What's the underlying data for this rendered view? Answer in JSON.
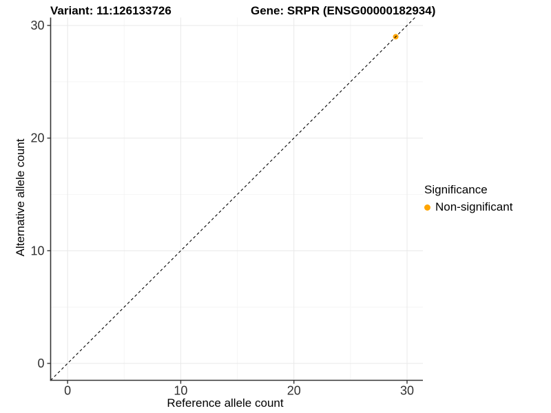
{
  "chart_data": {
    "type": "scatter",
    "title_left": "Variant: 11:126133726",
    "title_right": "Gene: SRPR (ENSG00000182934)",
    "xlabel": "Reference allele count",
    "ylabel": "Alternative allele count",
    "xlim": [
      -1.5,
      31.4
    ],
    "ylim": [
      -1.5,
      30.7
    ],
    "x_ticks": [
      0,
      10,
      20,
      30
    ],
    "y_ticks": [
      0,
      10,
      20,
      30
    ],
    "x_minor_ticks": [
      5,
      15,
      25
    ],
    "y_minor_ticks": [
      5,
      15,
      25
    ],
    "grid": "major+minor",
    "identity_line": {
      "style": "dashed",
      "color": "#000000",
      "from": -1.5,
      "to": 30.7
    },
    "series": [
      {
        "name": "Non-significant",
        "color": "#FFA500",
        "points": [
          {
            "x": 29,
            "y": 29
          }
        ]
      }
    ],
    "legend": {
      "title": "Significance",
      "position": "right",
      "entries": [
        {
          "label": "Non-significant",
          "color": "#FFA500"
        }
      ]
    },
    "colors": {
      "background": "#ffffff",
      "axis_line": "#333333",
      "tick_mark": "#333333",
      "tick_label": "#303030",
      "grid_major": "#e8e8e8",
      "grid_minor": "#f4f4f4"
    }
  }
}
